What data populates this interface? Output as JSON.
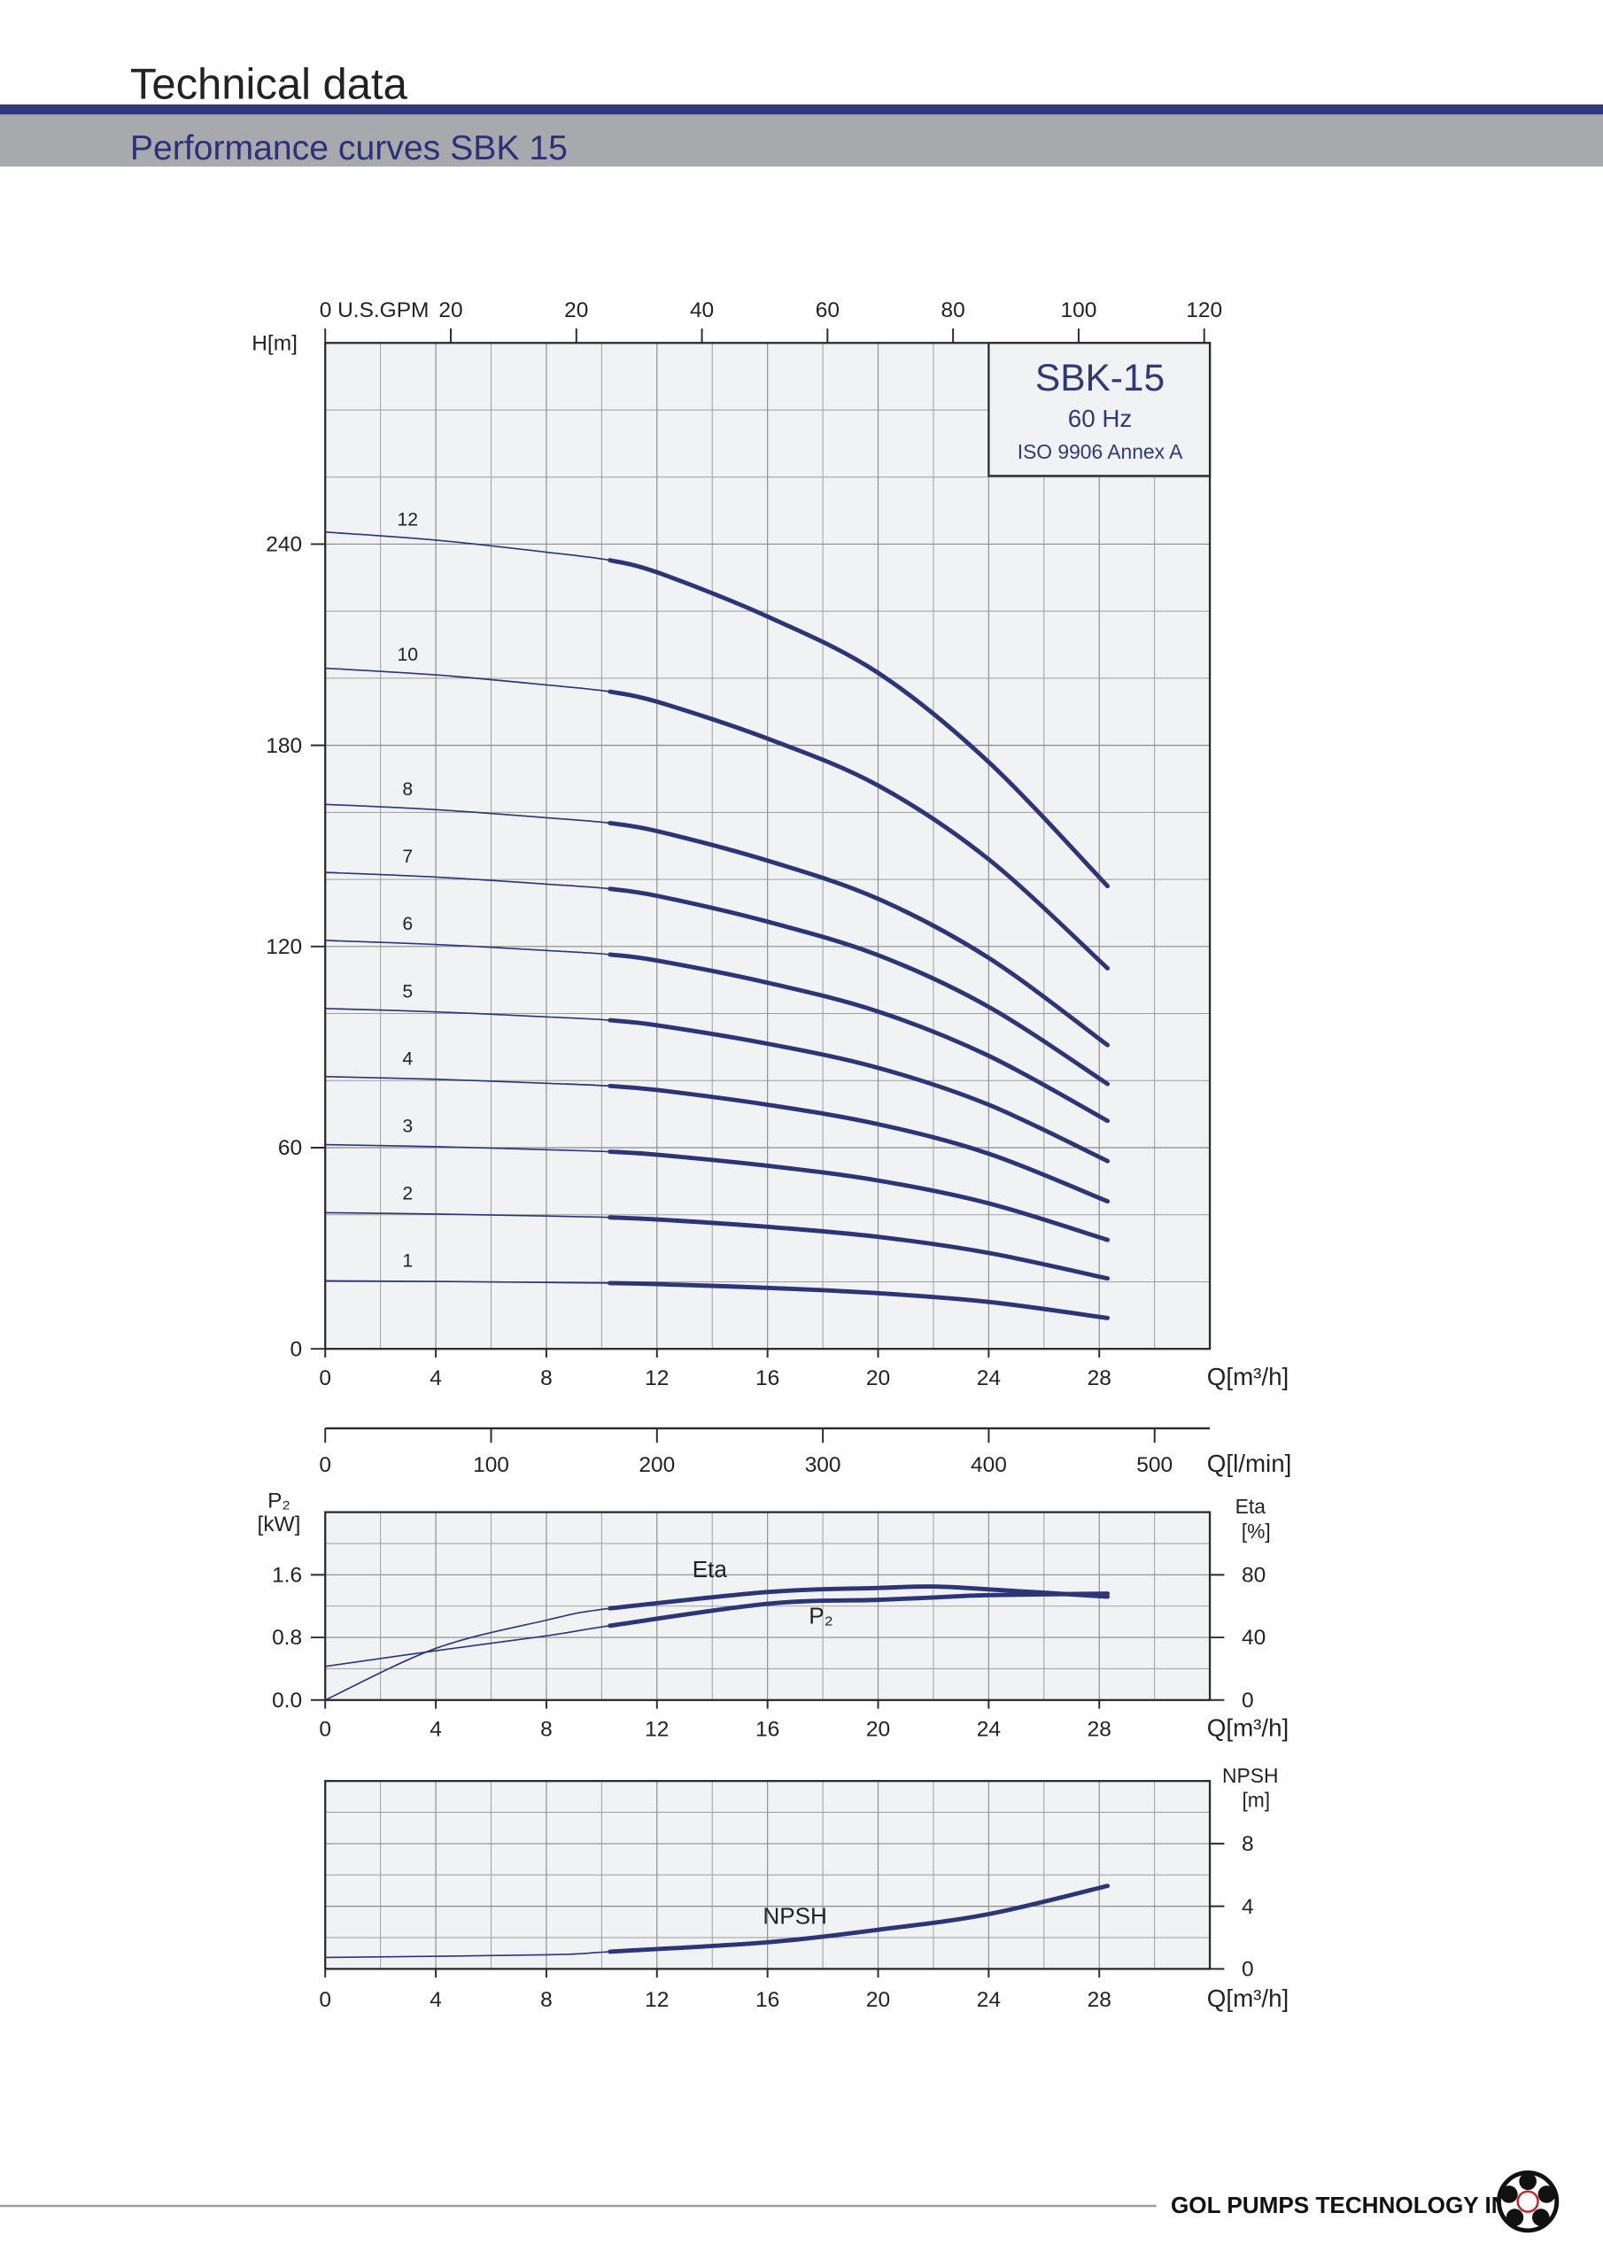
{
  "header": {
    "title": "Technical data",
    "subtitle": "Performance curves SBK 15"
  },
  "footer": {
    "company": "GOL PUMPS TECHNOLOGY INC"
  },
  "chart_data": [
    {
      "type": "line",
      "annotations": [
        "SBK-15",
        "60 Hz",
        "ISO 9906 Annex A"
      ],
      "x": [
        0,
        4,
        8,
        10.3,
        12,
        16,
        20,
        24,
        28.3
      ],
      "xlim": [
        0,
        32
      ],
      "xticks": [
        0,
        4,
        8,
        12,
        16,
        20,
        24,
        28
      ],
      "xlabel": "Q[m³/h]",
      "ylim": [
        0,
        300
      ],
      "yticks": [
        0,
        60,
        120,
        180,
        240
      ],
      "ylabel": [
        "H[m]"
      ],
      "x2lim": [
        0,
        140.9
      ],
      "x2ticks": [
        {
          "value": 0,
          "label": "0 U.S.GPM"
        },
        20,
        {
          "value": 40,
          "label": "20"
        },
        {
          "value": 60,
          "label": "40"
        },
        {
          "value": 80,
          "label": "60"
        },
        {
          "value": 100,
          "label": "80"
        },
        {
          "value": 120,
          "label": "100"
        },
        {
          "value": 140,
          "label": "120"
        }
      ],
      "x3lim": [
        0,
        533.3
      ],
      "x3ticks": [
        0,
        100,
        200,
        300,
        400,
        500
      ],
      "x3label": "Q[l/min]",
      "grid": true,
      "minor_grid": {
        "x": 2,
        "y": 3
      },
      "bold_from": 10.3,
      "series": [
        {
          "name": "1",
          "color": "#2b3577",
          "values": [
            20.3,
            20.1,
            19.8,
            19.6,
            19.3,
            18.2,
            16.6,
            14.0,
            9.2
          ]
        },
        {
          "name": "2",
          "color": "#2b3577",
          "values": [
            40.6,
            40.2,
            39.6,
            39.2,
            38.6,
            36.4,
            33.4,
            28.6,
            21
          ]
        },
        {
          "name": "3",
          "color": "#2b3577",
          "values": [
            60.9,
            60.3,
            59.4,
            58.8,
            57.9,
            54.6,
            50.2,
            43.4,
            32.5
          ]
        },
        {
          "name": "4",
          "color": "#2b3577",
          "values": [
            81.2,
            80.4,
            79.2,
            78.4,
            77.2,
            72.8,
            67,
            58.2,
            44
          ]
        },
        {
          "name": "5",
          "color": "#2b3577",
          "values": [
            101.5,
            100.5,
            99,
            98,
            96.5,
            91,
            83.8,
            72.8,
            56
          ]
        },
        {
          "name": "6",
          "color": "#2b3577",
          "values": [
            121.8,
            120.6,
            118.8,
            117.6,
            115.8,
            109.2,
            100.6,
            87.4,
            68
          ]
        },
        {
          "name": "7",
          "color": "#2b3577",
          "values": [
            142.1,
            140.7,
            138.6,
            137.2,
            135.1,
            127.4,
            117.4,
            102,
            79
          ]
        },
        {
          "name": "8",
          "color": "#2b3577",
          "values": [
            162.4,
            160.8,
            158.4,
            156.8,
            154.4,
            145.6,
            134.2,
            116.6,
            90.6
          ]
        },
        {
          "name": "10",
          "color": "#2b3577",
          "values": [
            203,
            201,
            198,
            196,
            193,
            182,
            168,
            146,
            113.5
          ]
        },
        {
          "name": "12",
          "color": "#2b3577",
          "values": [
            243.6,
            241.2,
            237.6,
            235.2,
            231.6,
            218.4,
            201.6,
            175,
            138
          ]
        }
      ]
    },
    {
      "type": "line",
      "x": [
        0,
        4,
        8,
        10.3,
        16,
        20,
        22,
        24,
        28.3
      ],
      "xlim": [
        0,
        32
      ],
      "xticks": [
        0,
        4,
        8,
        12,
        16,
        20,
        24,
        28
      ],
      "xlabel": "Q[m³/h]",
      "ylim": [
        0,
        2.4
      ],
      "yticks": [
        {
          "value": 0,
          "label": "0.0"
        },
        0.8,
        1.6
      ],
      "ylabel": [
        "P₂",
        "[kW]"
      ],
      "y2lim": [
        0,
        120
      ],
      "y2ticks": [
        0,
        40,
        80
      ],
      "y2label": [
        "Eta",
        "[%]"
      ],
      "grid": true,
      "minor_grid": {
        "x": 2,
        "y": 2
      },
      "bold_from": 10.3,
      "series": [
        {
          "name": "Eta",
          "color": "#2b3577",
          "axis": "y2",
          "values": [
            0,
            33,
            51,
            58.6,
            69,
            71.6,
            72.5,
            70.7,
            66
          ]
        },
        {
          "name": "P₂",
          "color": "#2b3577",
          "values": [
            0.43,
            0.63,
            0.82,
            0.95,
            1.23,
            1.28,
            1.31,
            1.34,
            1.36
          ]
        }
      ]
    },
    {
      "type": "line",
      "x": [
        0,
        8,
        10.3,
        16,
        20,
        24,
        28.3
      ],
      "xlim": [
        0,
        32
      ],
      "xticks": [
        0,
        4,
        8,
        12,
        16,
        20,
        24,
        28
      ],
      "xlabel": "Q[m³/h]",
      "y2lim": [
        0,
        12
      ],
      "y2ticks": [
        0,
        4,
        8
      ],
      "y2label": [
        "NPSH",
        "[m]"
      ],
      "grid": true,
      "minor_grid": {
        "x": 2,
        "y": 2
      },
      "bold_from": 10.3,
      "series": [
        {
          "name": "NPSH",
          "color": "#2b3577",
          "axis": "y2",
          "values": [
            0.73,
            0.9,
            1.1,
            1.7,
            2.5,
            3.5,
            5.3
          ]
        }
      ]
    }
  ]
}
